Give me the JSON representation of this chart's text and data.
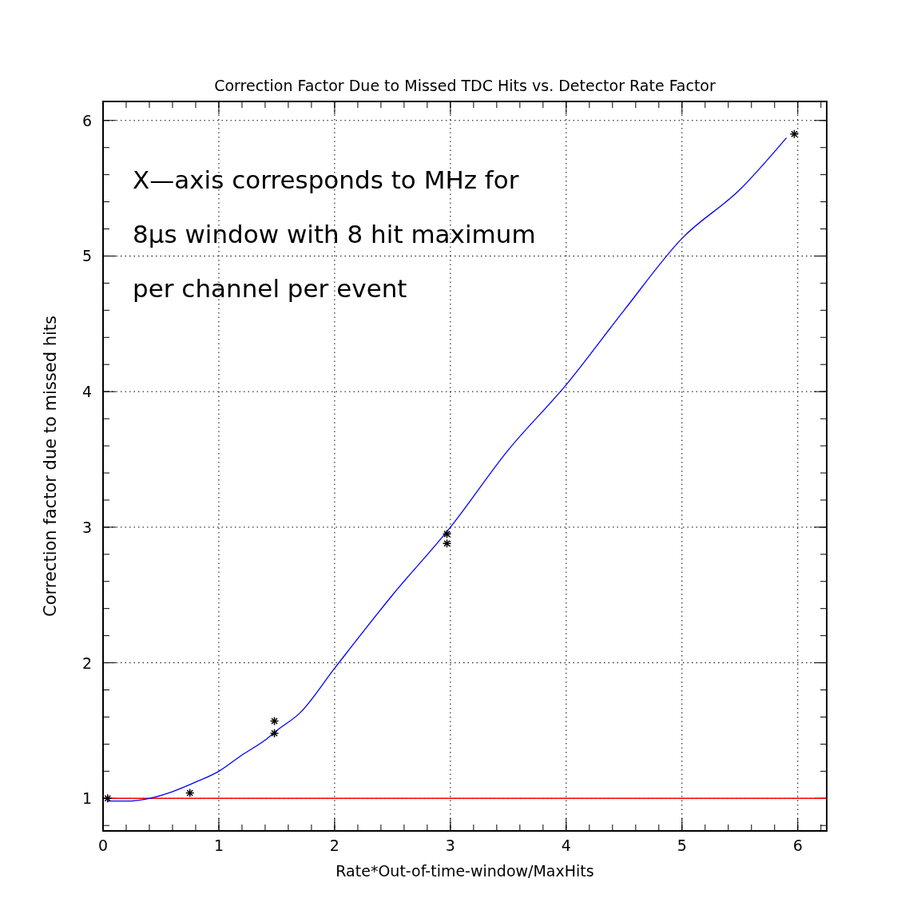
{
  "chart_data": {
    "type": "scatter",
    "title": "Correction Factor Due to Missed TDC Hits vs. Detector Rate Factor",
    "xlabel": "Rate*Out-of-time-window/MaxHits",
    "ylabel": "Correction factor due to missed hits",
    "annotations": [
      "X—axis corresponds to MHz for",
      "8μs window with 8 hit maximum",
      "per channel per event"
    ],
    "series": [
      {
        "type": "line",
        "color": "#0000ff",
        "marker": "none",
        "x": [
          0.04,
          0.2,
          0.4,
          0.6,
          0.8,
          1.0,
          1.2,
          1.4,
          1.5,
          1.7,
          2.0,
          2.5,
          3.0,
          3.5,
          4.0,
          4.5,
          5.0,
          5.5,
          5.9
        ],
        "values": [
          0.98,
          0.98,
          1.0,
          1.05,
          1.12,
          1.2,
          1.32,
          1.43,
          1.5,
          1.63,
          1.96,
          2.5,
          3.0,
          3.57,
          4.05,
          4.6,
          5.13,
          5.49,
          5.87
        ]
      },
      {
        "type": "scatter",
        "color": "#000000",
        "marker": "cross",
        "x": [
          0.04,
          0.75,
          1.48,
          1.48,
          2.97,
          2.97,
          5.97
        ],
        "values": [
          1.0,
          1.04,
          1.57,
          1.48,
          2.95,
          2.88,
          5.9
        ]
      }
    ],
    "ref_lines": [
      {
        "axis": "y",
        "value": 1,
        "color": "#ff0000"
      }
    ],
    "xlim": [
      0,
      6.25
    ],
    "ylim": [
      0.76,
      6.14
    ],
    "xticks": [
      0,
      1,
      2,
      3,
      4,
      5,
      6
    ],
    "yticks": [
      1,
      2,
      3,
      4,
      5,
      6
    ],
    "grid": true
  }
}
